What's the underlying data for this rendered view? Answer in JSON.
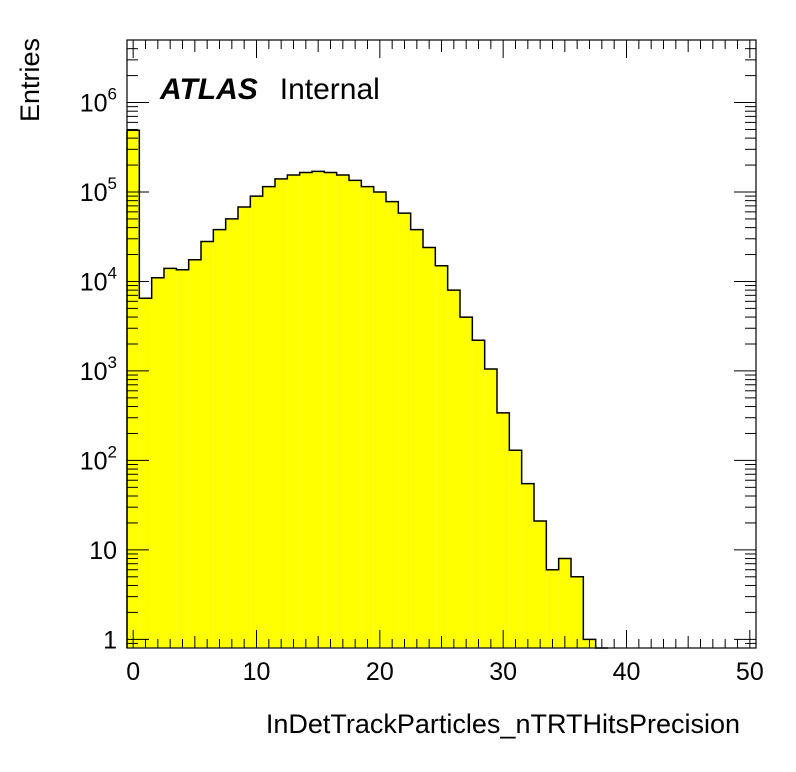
{
  "chart_data": {
    "type": "bar",
    "xlabel": "InDetTrackParticles_nTRTHitsPrecision",
    "ylabel": "Entries",
    "log_y": true,
    "xlim": [
      -0.5,
      50.5
    ],
    "ylim": [
      0.8,
      5000000
    ],
    "x_ticks": [
      0,
      10,
      20,
      30,
      40,
      50
    ],
    "y_ticks": [
      {
        "value": 1,
        "base": "1",
        "exp": ""
      },
      {
        "value": 10,
        "base": "10",
        "exp": ""
      },
      {
        "value": 100,
        "base": "10",
        "exp": "2"
      },
      {
        "value": 1000,
        "base": "10",
        "exp": "3"
      },
      {
        "value": 10000,
        "base": "10",
        "exp": "4"
      },
      {
        "value": 100000,
        "base": "10",
        "exp": "5"
      },
      {
        "value": 1000000,
        "base": "10",
        "exp": "6"
      }
    ],
    "bin_width": 1,
    "bin_low_edges": [
      -0.5,
      0.5,
      1.5,
      2.5,
      3.5,
      4.5,
      5.5,
      6.5,
      7.5,
      8.5,
      9.5,
      10.5,
      11.5,
      12.5,
      13.5,
      14.5,
      15.5,
      16.5,
      17.5,
      18.5,
      19.5,
      20.5,
      21.5,
      22.5,
      23.5,
      24.5,
      25.5,
      26.5,
      27.5,
      28.5,
      29.5,
      30.5,
      31.5,
      32.5,
      33.5,
      34.5,
      35.5,
      36.5,
      37.5
    ],
    "values": [
      490000,
      6500,
      11000,
      14000,
      13500,
      17500,
      28000,
      38000,
      50000,
      68000,
      90000,
      115000,
      140000,
      155000,
      165000,
      170000,
      165000,
      155000,
      135000,
      115000,
      100000,
      78000,
      58000,
      38000,
      24000,
      15000,
      8000,
      4000,
      2200,
      1050,
      340,
      130,
      55,
      21,
      6,
      8,
      5,
      1,
      0
    ],
    "fill_color": "#ffff00",
    "line_color": "#000000",
    "grid": false
  },
  "labels": {
    "atlas": "ATLAS",
    "internal": "Internal"
  }
}
